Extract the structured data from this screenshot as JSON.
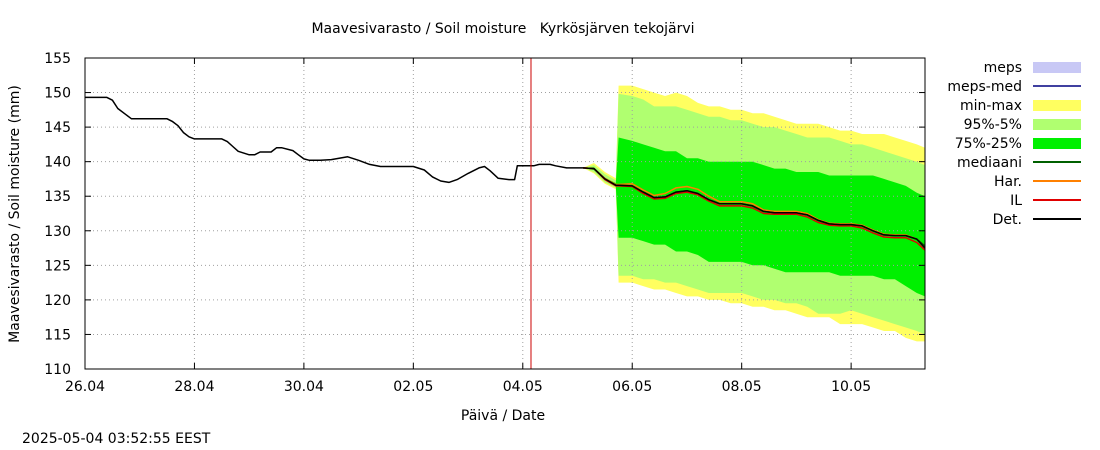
{
  "chart_data": {
    "type": "area",
    "title": "Maavesivarasto / Soil moisture   Kyrkösjärven tekojärvi",
    "xlabel": "Päivä / Date",
    "ylabel": "Maavesivarasto / Soil moisture (mm)",
    "timestamp": "2025-05-04 03:52:55 EEST",
    "x_start": "26.04",
    "x_unit": "day",
    "xlim": [
      0,
      15.35
    ],
    "ylim": [
      110,
      155
    ],
    "yticks": [
      110,
      115,
      120,
      125,
      130,
      135,
      140,
      145,
      150,
      155
    ],
    "xticks": [
      {
        "x": 0,
        "label": "26.04"
      },
      {
        "x": 2,
        "label": "28.04"
      },
      {
        "x": 4,
        "label": "30.04"
      },
      {
        "x": 6,
        "label": "02.05"
      },
      {
        "x": 8,
        "label": "04.05"
      },
      {
        "x": 10,
        "label": "06.05"
      },
      {
        "x": 12,
        "label": "08.05"
      },
      {
        "x": 14,
        "label": "10.05"
      }
    ],
    "grid": true,
    "legend_position": "right",
    "now_marker_x": 8.15,
    "colors": {
      "meps": "#c8c8f5",
      "meps_med": "#4040a0",
      "minmax": "#ffff60",
      "p95_5": "#b0ff70",
      "p75_25": "#00f000",
      "mediaani": "#006000",
      "har": "#ff8000",
      "il": "#e00000",
      "det": "#000000",
      "now_marker": "#cc0000",
      "grid": "#a0a0a0"
    },
    "legend": [
      {
        "key": "meps",
        "label": "meps",
        "kind": "area"
      },
      {
        "key": "meps_med",
        "label": "meps-med",
        "kind": "line"
      },
      {
        "key": "minmax",
        "label": "min-max",
        "kind": "area"
      },
      {
        "key": "p95_5",
        "label": "95%-5%",
        "kind": "area"
      },
      {
        "key": "p75_25",
        "label": "75%-25%",
        "kind": "area"
      },
      {
        "key": "mediaani",
        "label": "mediaani",
        "kind": "line"
      },
      {
        "key": "har",
        "label": "Har.",
        "kind": "line"
      },
      {
        "key": "il",
        "label": "IL",
        "kind": "line"
      },
      {
        "key": "det",
        "label": "Det.",
        "kind": "line"
      }
    ],
    "observed": [
      [
        0.0,
        149.3
      ],
      [
        0.4,
        149.3
      ],
      [
        0.5,
        148.9
      ],
      [
        0.6,
        147.7
      ],
      [
        0.75,
        146.8
      ],
      [
        0.85,
        146.2
      ],
      [
        1.0,
        146.2
      ],
      [
        1.5,
        146.2
      ],
      [
        1.6,
        145.8
      ],
      [
        1.7,
        145.2
      ],
      [
        1.8,
        144.2
      ],
      [
        1.9,
        143.6
      ],
      [
        2.0,
        143.3
      ],
      [
        2.5,
        143.3
      ],
      [
        2.6,
        142.9
      ],
      [
        2.7,
        142.2
      ],
      [
        2.8,
        141.5
      ],
      [
        3.0,
        141.0
      ],
      [
        3.1,
        141.0
      ],
      [
        3.2,
        141.4
      ],
      [
        3.4,
        141.4
      ],
      [
        3.5,
        142.0
      ],
      [
        3.6,
        142.0
      ],
      [
        3.8,
        141.6
      ],
      [
        3.9,
        141.0
      ],
      [
        4.0,
        140.4
      ],
      [
        4.1,
        140.2
      ],
      [
        4.3,
        140.2
      ],
      [
        4.5,
        140.3
      ],
      [
        4.8,
        140.7
      ],
      [
        5.0,
        140.2
      ],
      [
        5.2,
        139.6
      ],
      [
        5.4,
        139.3
      ],
      [
        6.0,
        139.3
      ],
      [
        6.2,
        138.8
      ],
      [
        6.35,
        137.8
      ],
      [
        6.5,
        137.2
      ],
      [
        6.65,
        137.0
      ],
      [
        6.8,
        137.4
      ],
      [
        7.0,
        138.3
      ],
      [
        7.2,
        139.1
      ],
      [
        7.3,
        139.3
      ],
      [
        7.4,
        138.7
      ],
      [
        7.55,
        137.6
      ],
      [
        7.75,
        137.4
      ],
      [
        7.85,
        137.4
      ],
      [
        7.9,
        139.4
      ],
      [
        8.2,
        139.4
      ],
      [
        8.3,
        139.6
      ],
      [
        8.5,
        139.6
      ],
      [
        8.6,
        139.4
      ],
      [
        8.8,
        139.1
      ],
      [
        9.0,
        139.1
      ],
      [
        9.1,
        139.1
      ]
    ],
    "ensemble_x": [
      9.1,
      9.3,
      9.5,
      9.7,
      9.75,
      10.0,
      10.2,
      10.4,
      10.6,
      10.8,
      11.0,
      11.2,
      11.4,
      11.6,
      11.8,
      12.0,
      12.2,
      12.4,
      12.6,
      12.8,
      13.0,
      13.2,
      13.4,
      13.6,
      13.8,
      14.0,
      14.2,
      14.4,
      14.6,
      14.8,
      15.0,
      15.2,
      15.35
    ],
    "minmax_upper": [
      139.1,
      139.8,
      138.5,
      137.6,
      151.0,
      151.0,
      150.5,
      150.0,
      149.5,
      150.0,
      149.5,
      148.5,
      148.0,
      148.0,
      147.5,
      147.5,
      147.0,
      147.0,
      146.5,
      146.0,
      145.5,
      145.5,
      145.5,
      145.0,
      144.5,
      144.5,
      144.0,
      144.0,
      144.0,
      143.5,
      143.0,
      142.5,
      142.0
    ],
    "p95_upper": [
      139.1,
      139.5,
      138.2,
      137.3,
      149.8,
      149.5,
      149.0,
      148.0,
      148.0,
      148.0,
      147.5,
      147.0,
      146.5,
      146.5,
      146.0,
      146.0,
      145.5,
      145.0,
      145.0,
      144.5,
      144.0,
      143.5,
      143.5,
      143.5,
      143.0,
      142.5,
      142.5,
      142.0,
      141.5,
      141.0,
      140.5,
      140.0,
      139.5
    ],
    "p75_upper": [
      139.1,
      139.2,
      137.7,
      136.9,
      143.5,
      143.0,
      142.5,
      142.0,
      141.5,
      141.5,
      140.5,
      140.5,
      140.0,
      140.0,
      140.0,
      140.0,
      140.0,
      139.5,
      139.0,
      139.0,
      138.5,
      138.5,
      138.5,
      138.0,
      138.0,
      138.0,
      138.0,
      138.0,
      137.5,
      137.0,
      136.5,
      135.5,
      135.0
    ],
    "p75_lower": [
      139.1,
      138.8,
      137.3,
      136.5,
      129.0,
      129.0,
      128.5,
      128.0,
      128.0,
      127.0,
      127.0,
      126.5,
      125.5,
      125.5,
      125.5,
      125.5,
      125.0,
      125.0,
      124.5,
      124.0,
      124.0,
      124.0,
      124.0,
      124.0,
      123.5,
      123.5,
      123.5,
      123.5,
      123.0,
      123.0,
      122.0,
      121.0,
      120.5
    ],
    "p95_lower": [
      139.1,
      138.5,
      137.0,
      136.2,
      123.5,
      123.5,
      123.0,
      123.0,
      122.5,
      122.5,
      122.0,
      121.5,
      121.0,
      121.0,
      121.0,
      121.0,
      120.5,
      120.0,
      120.0,
      119.5,
      119.5,
      119.0,
      118.0,
      118.0,
      118.0,
      118.5,
      118.0,
      117.5,
      117.0,
      116.5,
      116.0,
      115.5,
      115.0
    ],
    "minmax_lower": [
      139.1,
      138.3,
      136.8,
      136.0,
      122.5,
      122.5,
      122.0,
      121.5,
      121.5,
      121.0,
      120.5,
      120.5,
      120.0,
      120.0,
      119.5,
      119.5,
      119.0,
      119.0,
      118.5,
      118.5,
      118.0,
      117.5,
      117.5,
      117.5,
      116.5,
      116.5,
      116.5,
      116.0,
      115.5,
      115.5,
      114.5,
      114.0,
      114.0
    ],
    "median": [
      139.1,
      139.0,
      137.5,
      136.6,
      136.6,
      136.5,
      135.6,
      134.8,
      134.9,
      135.6,
      135.8,
      135.4,
      134.5,
      133.9,
      133.9,
      133.9,
      133.6,
      132.8,
      132.6,
      132.6,
      132.6,
      132.3,
      131.5,
      131.0,
      130.9,
      130.9,
      130.7,
      130.0,
      129.4,
      129.3,
      129.3,
      128.8,
      127.8
    ],
    "har": [
      139.1,
      139.0,
      137.6,
      136.7,
      136.7,
      136.8,
      135.9,
      135.1,
      135.4,
      136.2,
      136.4,
      136.0,
      135.0,
      134.2,
      134.2,
      134.2,
      133.9,
      133.0,
      132.8,
      132.8,
      132.8,
      132.5,
      131.6,
      131.1,
      131.0,
      131.0,
      130.8,
      130.1,
      129.5,
      129.4,
      129.4,
      128.8,
      127.8
    ],
    "il": [
      139.1,
      139.0,
      137.4,
      136.5,
      136.5,
      136.4,
      135.4,
      134.6,
      134.7,
      135.4,
      135.6,
      135.2,
      134.3,
      133.6,
      133.6,
      133.6,
      133.3,
      132.5,
      132.4,
      132.4,
      132.4,
      132.0,
      131.2,
      130.8,
      130.7,
      130.7,
      130.4,
      129.7,
      129.1,
      129.0,
      129.0,
      128.3,
      127.2
    ],
    "det": [
      139.1,
      139.0,
      137.5,
      136.6,
      136.6,
      136.5,
      135.6,
      134.8,
      134.9,
      135.6,
      135.8,
      135.4,
      134.5,
      133.9,
      133.9,
      133.9,
      133.6,
      132.8,
      132.6,
      132.6,
      132.6,
      132.3,
      131.5,
      131.0,
      130.9,
      130.9,
      130.7,
      130.0,
      129.4,
      129.3,
      129.3,
      128.8,
      127.5
    ]
  }
}
